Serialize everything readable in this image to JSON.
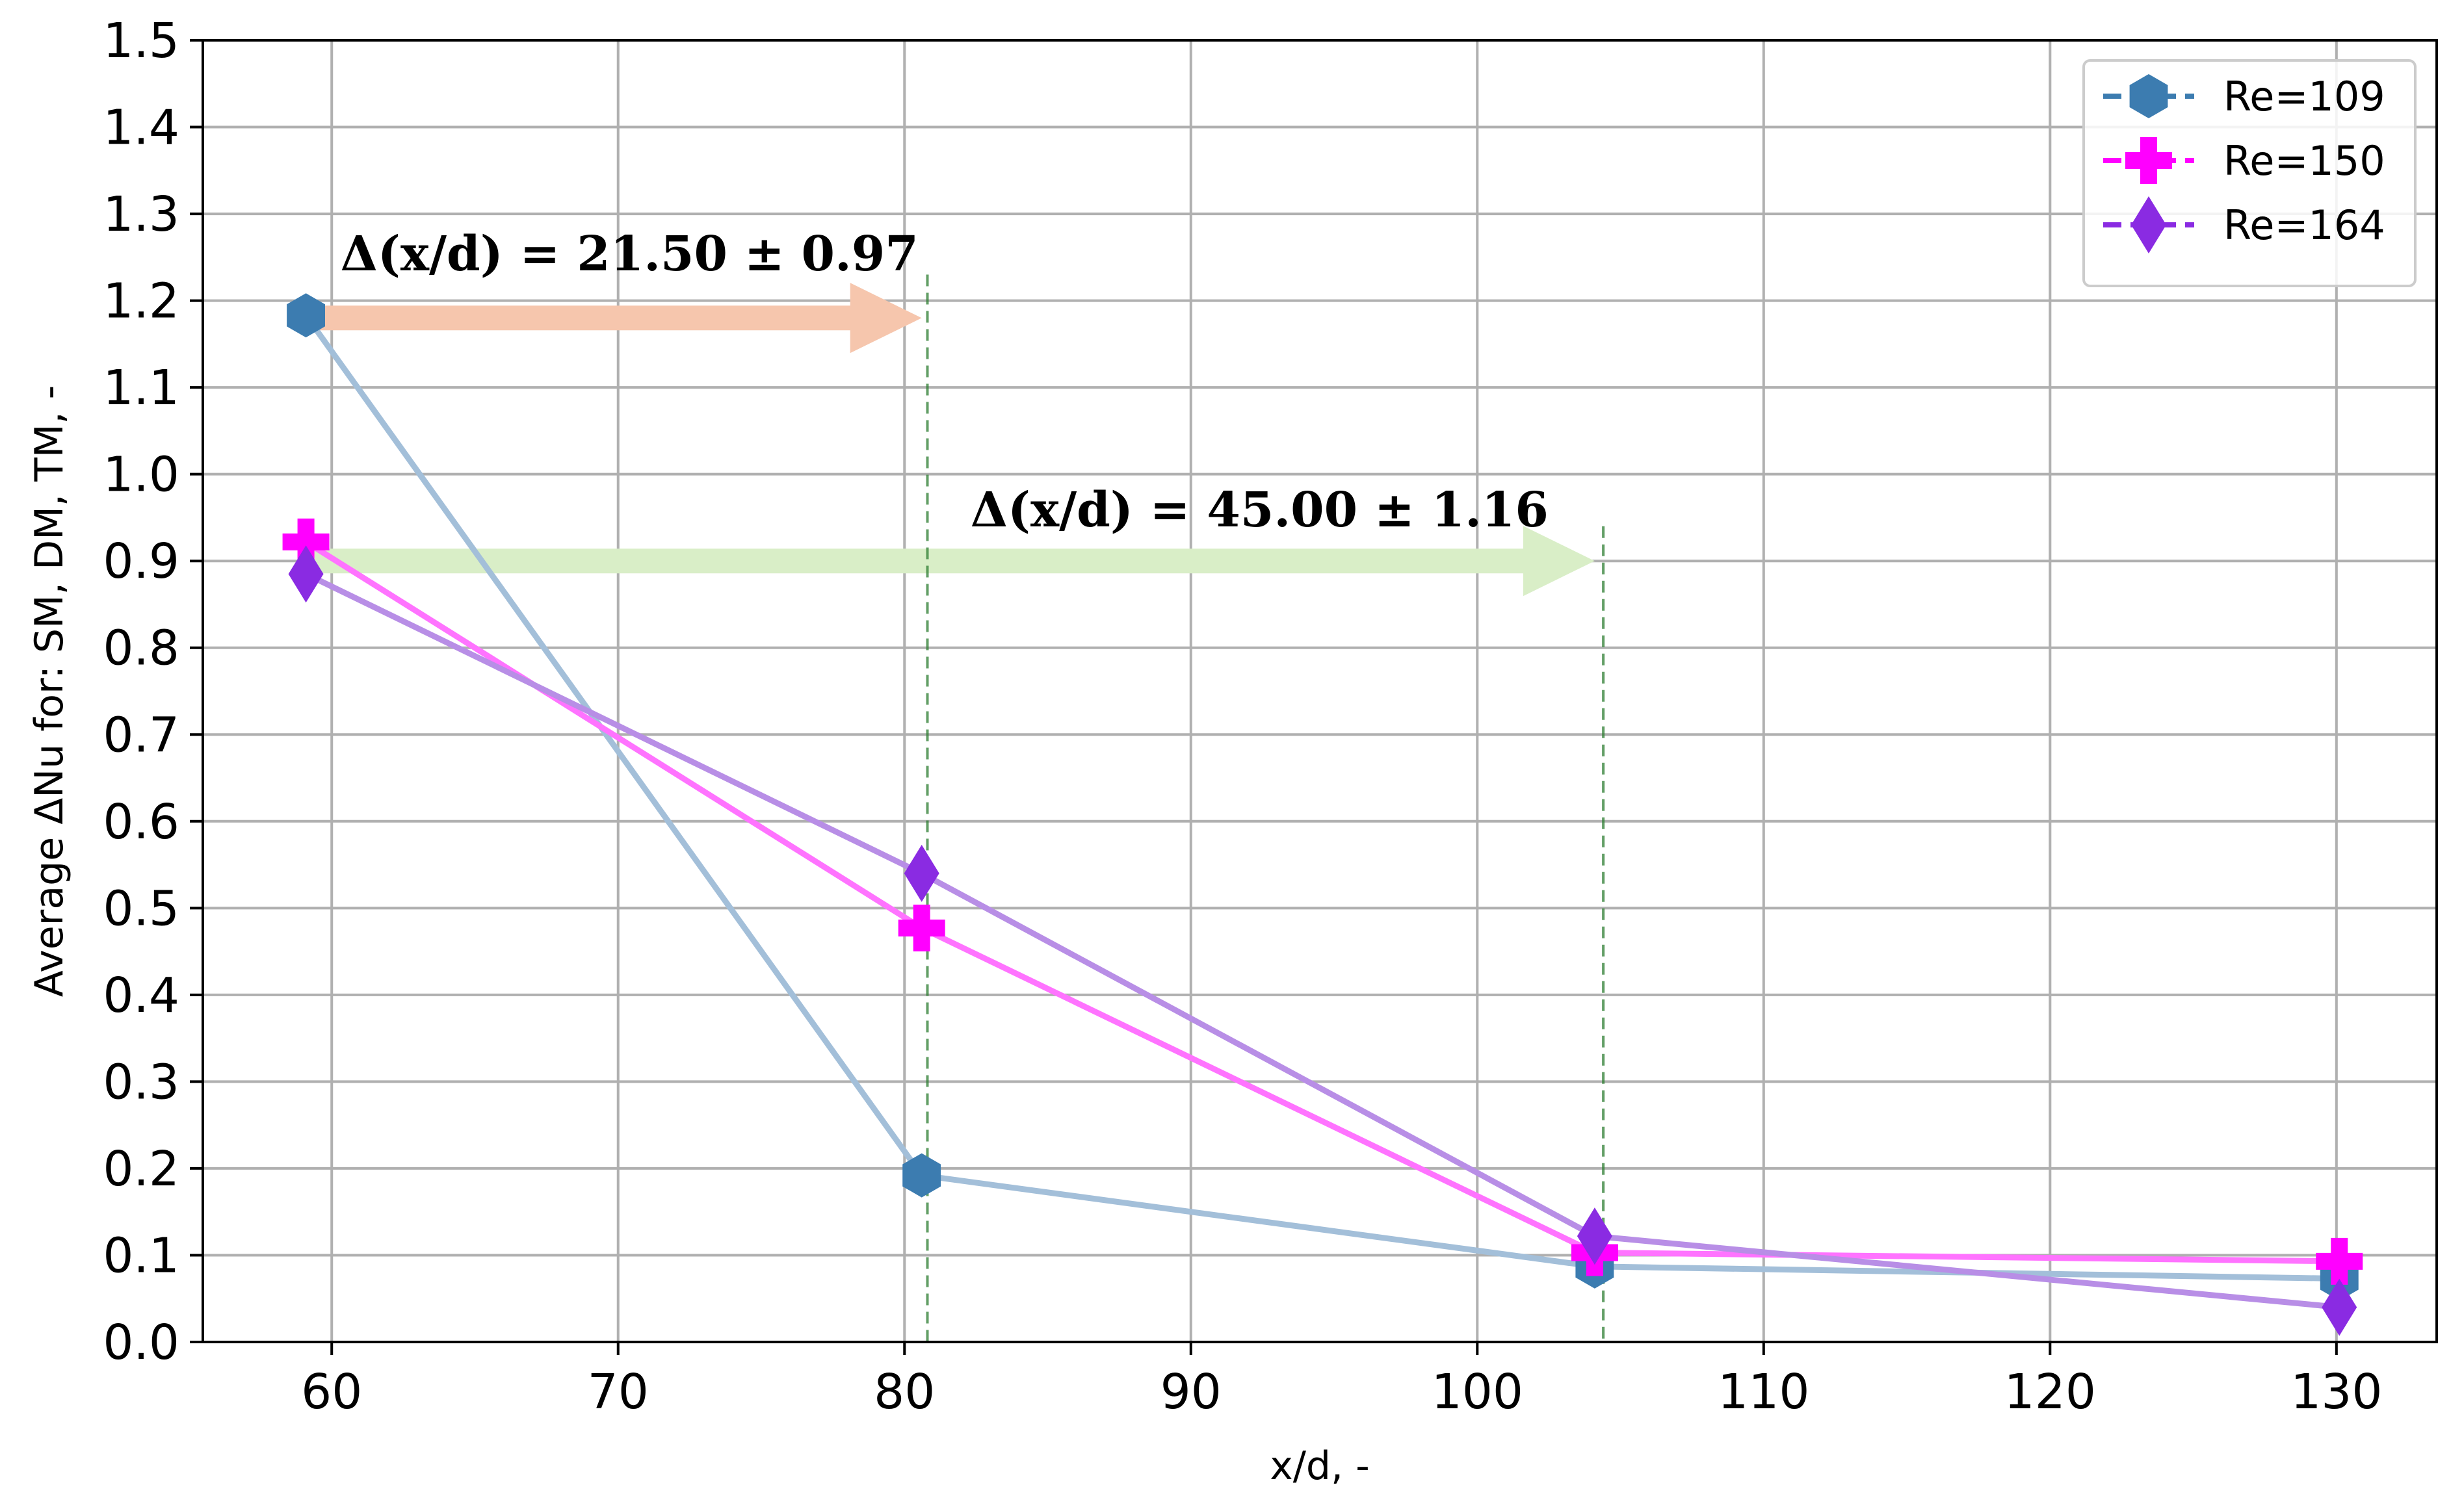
{
  "chart_data": {
    "type": "line",
    "xlabel": "x/d, -",
    "ylabel": "Average ΔNu for: SM, DM, TM, -",
    "xlim": [
      55.5,
      133.5
    ],
    "ylim": [
      0.0,
      1.5
    ],
    "xticks": [
      60,
      70,
      80,
      90,
      100,
      110,
      120,
      130
    ],
    "yticks": [
      0.0,
      0.1,
      0.2,
      0.3,
      0.4,
      0.5,
      0.6,
      0.7,
      0.8,
      0.9,
      1.0,
      1.1,
      1.2,
      1.3,
      1.4,
      1.5
    ],
    "grid": true,
    "legend_position": "top-right",
    "series": [
      {
        "name": "Re=109",
        "marker": "hexagon",
        "marker_color": "#3c7cb0",
        "line_color": "#a3bfd9",
        "x": [
          59.1,
          80.6,
          104.1,
          130.1
        ],
        "y": [
          1.183,
          0.192,
          0.087,
          0.073
        ]
      },
      {
        "name": "Re=150",
        "marker": "plus",
        "marker_color": "#ff00ff",
        "line_color": "#ff73ff",
        "x": [
          59.1,
          80.6,
          104.1,
          130.1
        ],
        "y": [
          0.922,
          0.477,
          0.103,
          0.093
        ]
      },
      {
        "name": "Re=164",
        "marker": "diamond",
        "marker_color": "#8a2be2",
        "line_color": "#b88ee6",
        "x": [
          59.1,
          80.6,
          104.1,
          130.1
        ],
        "y": [
          0.885,
          0.54,
          0.122,
          0.04
        ]
      }
    ],
    "annotations": [
      {
        "text": "Δ(x/d) = 21.50 ± 0.97",
        "arrow_from": [
          59.1,
          1.18
        ],
        "arrow_to": [
          80.6,
          1.18
        ],
        "arrow_color": "#f6c6ad",
        "text_at": [
          60.3,
          1.235
        ],
        "vline_x": 80.8,
        "vline_top": 1.23
      },
      {
        "text": "Δ(x/d) = 45.00 ± 1.16",
        "arrow_from": [
          59.1,
          0.9
        ],
        "arrow_to": [
          104.1,
          0.9
        ],
        "arrow_color": "#d9eec7",
        "text_at": [
          82.3,
          0.94
        ],
        "vline_x": 104.4,
        "vline_top": 0.94
      }
    ]
  }
}
